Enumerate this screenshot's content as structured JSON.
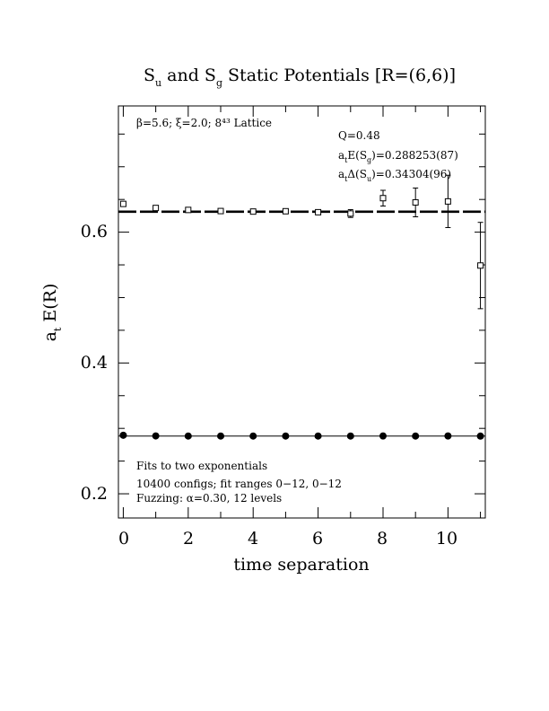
{
  "chart_data": {
    "type": "scatter",
    "title_parts": {
      "a": "S",
      "a_sub": "u",
      "b": " and S",
      "b_sub": "g",
      "c": " Static Potentials [R=(6,6)]"
    },
    "xlabel": "time separation",
    "ylabel": "a",
    "ylabel_sub": "t",
    "ylabel_tail": " E(R)",
    "xlim": [
      -0.15,
      11.15
    ],
    "ylim": [
      0.163,
      0.793
    ],
    "x_ticks": [
      "0",
      "2",
      "4",
      "6",
      "8",
      "10"
    ],
    "y_ticks": [
      "0.2",
      "0.4",
      "0.6"
    ],
    "grid": false,
    "annotations": {
      "lattice": "β=5.6; ξ=2.0; 8⁴³ Lattice",
      "q": "Q=0.48",
      "e_pre": "a",
      "e_sub1": "t",
      "e_mid": "E(S",
      "e_sub2": "g",
      "e_post": ")=0.288253(87)",
      "d_pre": "a",
      "d_sub1": "t",
      "d_mid": "Δ(S",
      "d_sub2": "u",
      "d_post": ")=0.34304(96)",
      "fits": "Fits to two exponentials",
      "configs": "10400 configs; fit ranges 0−12, 0−12",
      "fuzzing": "Fuzzing: α=0.30, 12 levels"
    },
    "series": [
      {
        "marker": "filled-circle",
        "x": [
          0,
          1,
          2,
          3,
          4,
          5,
          6,
          7,
          8,
          9,
          10,
          11
        ],
        "y": [
          0.2895,
          0.2885,
          0.2883,
          0.2883,
          0.2883,
          0.2883,
          0.2883,
          0.2883,
          0.2884,
          0.2883,
          0.2884,
          0.2882
        ],
        "err": [
          0.002,
          0.001,
          0.001,
          0.001,
          0.001,
          0.001,
          0.001,
          0.001,
          0.002,
          0.001,
          0.002,
          0.002
        ]
      },
      {
        "marker": "open-square",
        "x": [
          0,
          1,
          2,
          3,
          4,
          5,
          6,
          7,
          8,
          9,
          10,
          11
        ],
        "y": [
          0.6432,
          0.637,
          0.634,
          0.6323,
          0.6315,
          0.632,
          0.6305,
          0.6285,
          0.652,
          0.6455,
          0.647,
          0.549
        ],
        "err": [
          0.002,
          0.002,
          0.002,
          0.002,
          0.002,
          0.003,
          0.004,
          0.006,
          0.012,
          0.022,
          0.04,
          0.066
        ]
      }
    ],
    "fit_lines": [
      {
        "style": "solid",
        "y": 0.288253,
        "x": [
          -0.15,
          11.15
        ]
      },
      {
        "style": "dashed",
        "y": 0.63129,
        "x": [
          -0.15,
          11.15
        ]
      }
    ]
  }
}
